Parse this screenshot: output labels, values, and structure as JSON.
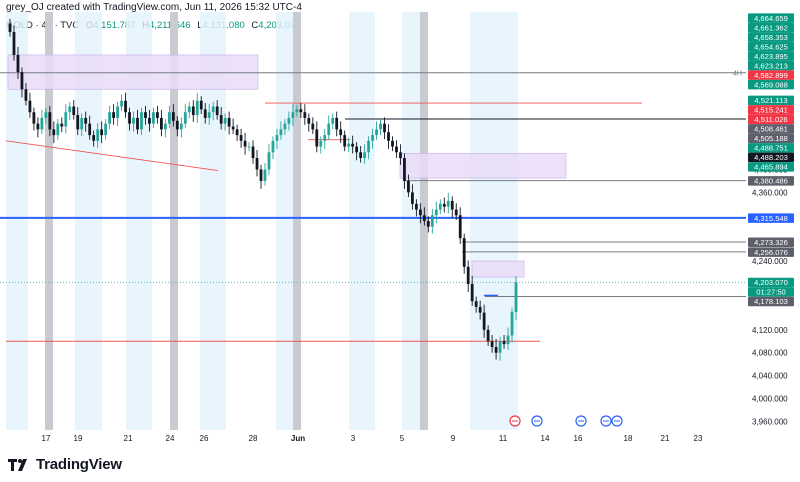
{
  "header": {
    "title": "grey_OJ created with TradingView.com, Jun 11, 2026 15:32 UTC-4",
    "symbol": "GOLD · 4h · TVC",
    "open_label": "O",
    "open": "4,151.787",
    "high_label": "H",
    "high": "4,211.646",
    "low_label": "L",
    "low": "4,131.080",
    "close_label": "C",
    "close": "4,203.070"
  },
  "footer": {
    "brand": "TradingView"
  },
  "colors": {
    "up": "#26a69a",
    "down": "#131722",
    "blue_line": "#2962ff",
    "green_label": "#089981",
    "red_label": "#f23645",
    "gray_label": "#5d606b",
    "zone_fill": "#e9dcf7",
    "session_shade": "#e3f2fd",
    "weekend_bar": "#c9cbd1"
  },
  "chart_data": {
    "type": "candlestick",
    "ylim": [
      3945,
      4675
    ],
    "x_ticks": [
      "17",
      "19",
      "21",
      "24",
      "26",
      "28",
      "Jun",
      "3",
      "5",
      "9",
      "11",
      "14",
      "16",
      "18",
      "21",
      "23"
    ],
    "y_ticks": [
      "4,440.000",
      "4,400.000",
      "4,360.000",
      "4,240.000",
      "4,120.000",
      "4,080.000",
      "4,040.000",
      "4,000.000",
      "3,960.000"
    ],
    "y_tick_values": [
      4440,
      4400,
      4360,
      4240,
      4120,
      4080,
      4040,
      4000,
      3960
    ],
    "price_labels": [
      {
        "text": "4,664.659",
        "value": 4664.659,
        "kind": "green"
      },
      {
        "text": "4,661.362",
        "value": 4661.362,
        "kind": "green"
      },
      {
        "text": "4,658.353",
        "value": 4658.353,
        "kind": "green"
      },
      {
        "text": "4,654.625",
        "value": 4654.625,
        "kind": "green"
      },
      {
        "text": "4,623.895",
        "value": 4623.895,
        "kind": "green"
      },
      {
        "text": "4,623.213",
        "value": 4623.213,
        "kind": "green"
      },
      {
        "text": "4,582.899",
        "value": 4582.899,
        "kind": "red"
      },
      {
        "text": "4,569.088",
        "value": 4569.088,
        "kind": "green"
      },
      {
        "text": "4,521.113",
        "value": 4521.113,
        "kind": "green"
      },
      {
        "text": "4,515.241",
        "value": 4515.241,
        "kind": "red"
      },
      {
        "text": "4,511.026",
        "value": 4511.026,
        "kind": "red"
      },
      {
        "text": "4,508.461",
        "value": 4508.461,
        "kind": "gray"
      },
      {
        "text": "4,505.188",
        "value": 4505.188,
        "kind": "gray"
      },
      {
        "text": "4,488.751",
        "value": 4488.751,
        "kind": "green"
      },
      {
        "text": "4,488.203",
        "value": 4488.203,
        "kind": "dark"
      },
      {
        "text": "4,465.894",
        "value": 4465.894,
        "kind": "green"
      },
      {
        "text": "4,380.486",
        "value": 4380.486,
        "kind": "gray"
      },
      {
        "text": "4,315.548",
        "value": 4315.548,
        "kind": "blue"
      },
      {
        "text": "4,273.326",
        "value": 4273.326,
        "kind": "gray"
      },
      {
        "text": "4,256.076",
        "value": 4256.076,
        "kind": "gray"
      },
      {
        "text": "4,203.070",
        "value": 4203.07,
        "kind": "green"
      },
      {
        "text": "01:27:50",
        "value": 4203.07,
        "kind": "countdown"
      },
      {
        "text": "4,178.103",
        "value": 4178.103,
        "kind": "gray"
      }
    ],
    "annotations": [
      {
        "text": "4H",
        "value": 4569
      }
    ],
    "horizontal_lines": [
      {
        "value": 4315.548,
        "color": "blue"
      },
      {
        "value": 4569,
        "color": "gray"
      },
      {
        "value": 4488.203,
        "color": "dark"
      },
      {
        "value": 4380.486,
        "color": "gray"
      },
      {
        "value": 4273.326,
        "color": "gray"
      },
      {
        "value": 4256.076,
        "color": "gray"
      },
      {
        "value": 4178.103,
        "color": "gray"
      }
    ],
    "closes": [
      4640,
      4600,
      4570,
      4540,
      4520,
      4500,
      4480,
      4470,
      4490,
      4500,
      4470,
      4460,
      4480,
      4475,
      4500,
      4510,
      4495,
      4470,
      4490,
      4480,
      4460,
      4450,
      4470,
      4460,
      4480,
      4500,
      4490,
      4510,
      4520,
      4500,
      4480,
      4490,
      4470,
      4500,
      4490,
      4480,
      4500,
      4490,
      4470,
      4480,
      4500,
      4485,
      4470,
      4480,
      4500,
      4510,
      4495,
      4520,
      4505,
      4490,
      4500,
      4510,
      4495,
      4480,
      4490,
      4475,
      4470,
      4460,
      4450,
      4440,
      4440,
      4420,
      4400,
      4380,
      4400,
      4430,
      4450,
      4460,
      4470,
      4480,
      4490,
      4500,
      4505,
      4500,
      4490,
      4480,
      4470,
      4440,
      4450,
      4460,
      4480,
      4490,
      4470,
      4460,
      4440,
      4445,
      4440,
      4430,
      4420,
      4430,
      4450,
      4460,
      4470,
      4480,
      4465,
      4450,
      4440,
      4430,
      4420,
      4380,
      4360,
      4340,
      4330,
      4320,
      4310,
      4300,
      4320,
      4330,
      4340,
      4335,
      4345,
      4330,
      4320,
      4280,
      4230,
      4200,
      4170,
      4160,
      4150,
      4120,
      4100,
      4090,
      4080,
      4100,
      4095,
      4110,
      4151,
      4203
    ]
  }
}
